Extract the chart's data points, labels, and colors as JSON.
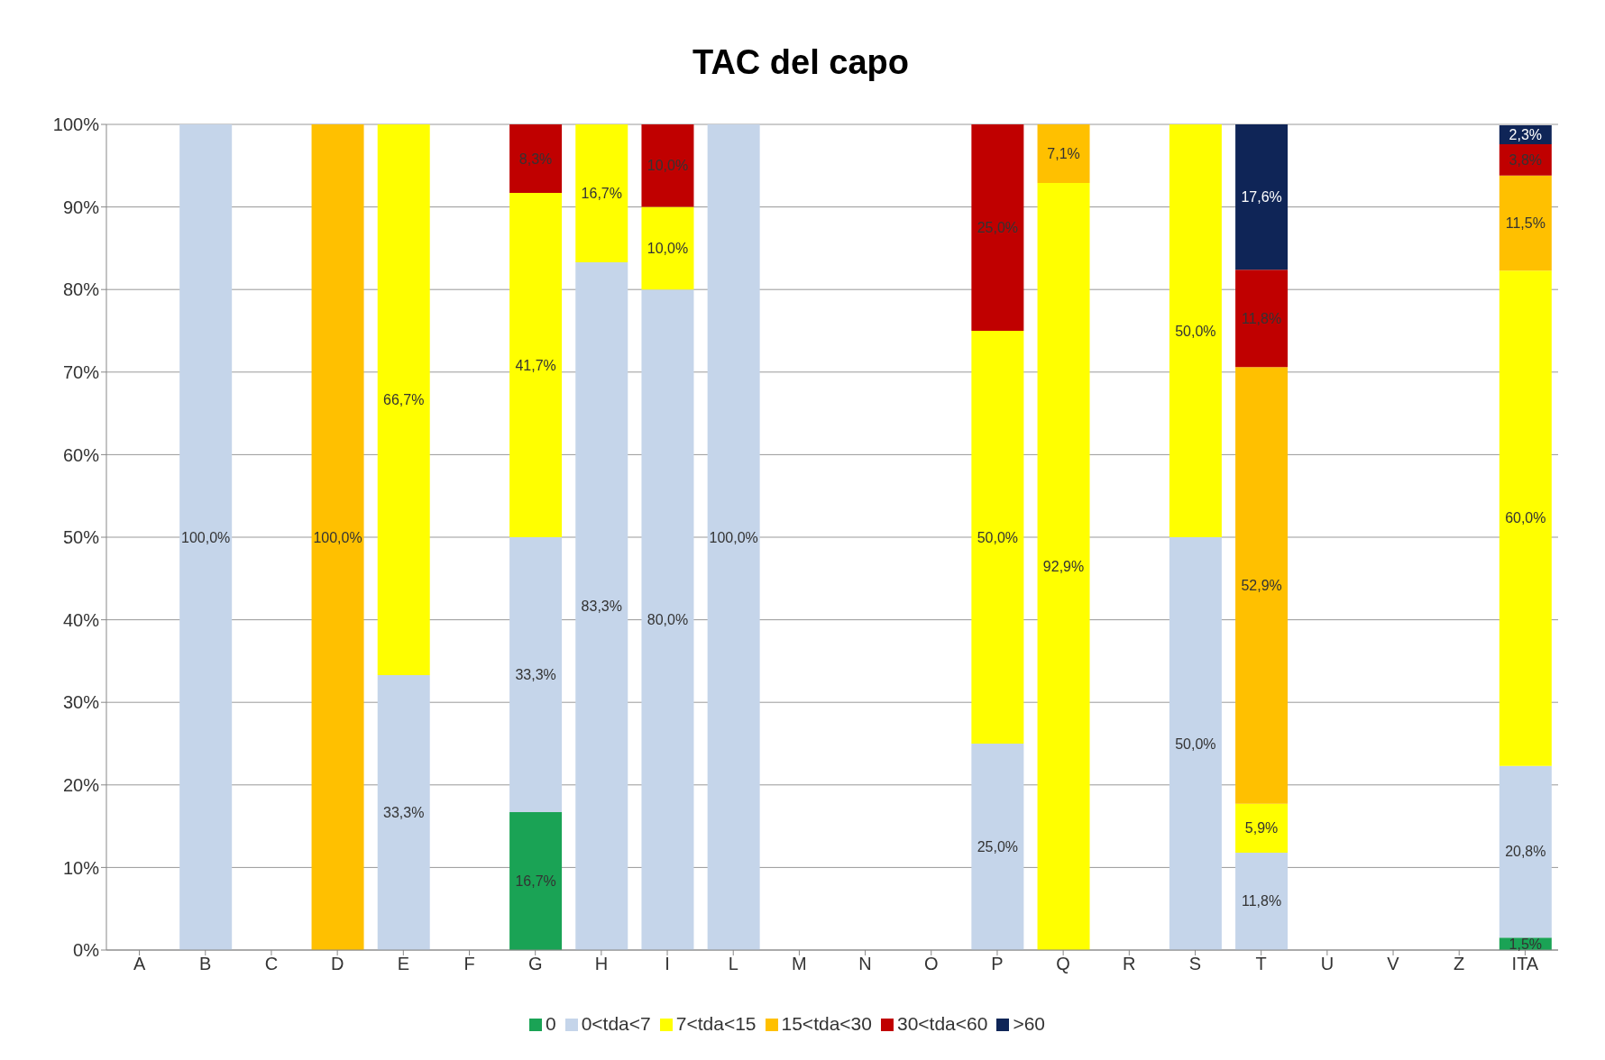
{
  "chart_data": {
    "type": "bar",
    "title": "TAC del capo",
    "stacked": true,
    "grid": "y",
    "legend": "bottom",
    "categories": [
      "A",
      "B",
      "C",
      "D",
      "E",
      "F",
      "G",
      "H",
      "I",
      "L",
      "M",
      "N",
      "O",
      "P",
      "Q",
      "R",
      "S",
      "T",
      "U",
      "V",
      "Z",
      "ITA"
    ],
    "ylim": [
      0,
      100
    ],
    "yticks": [
      {
        "value": 0,
        "label": "0%"
      },
      {
        "value": 10,
        "label": "10%"
      },
      {
        "value": 20,
        "label": "20%"
      },
      {
        "value": 30,
        "label": "30%"
      },
      {
        "value": 40,
        "label": "40%"
      },
      {
        "value": 50,
        "label": "50%"
      },
      {
        "value": 60,
        "label": "60%"
      },
      {
        "value": 70,
        "label": "70%"
      },
      {
        "value": 80,
        "label": "80%"
      },
      {
        "value": 90,
        "label": "90%"
      },
      {
        "value": 100,
        "label": "100%"
      }
    ],
    "series": [
      {
        "name": "0",
        "color": "#1aa355",
        "values": [
          null,
          null,
          null,
          null,
          null,
          null,
          16.7,
          null,
          null,
          null,
          null,
          null,
          null,
          null,
          null,
          null,
          null,
          null,
          null,
          null,
          null,
          1.5
        ],
        "value_labels": [
          null,
          null,
          null,
          null,
          null,
          null,
          "16,7%",
          null,
          null,
          null,
          null,
          null,
          null,
          null,
          null,
          null,
          null,
          null,
          null,
          null,
          null,
          "1,5%"
        ]
      },
      {
        "name": "0<tda<7",
        "color": "#c5d5ea",
        "values": [
          null,
          100,
          null,
          null,
          33.3,
          null,
          33.3,
          83.3,
          80,
          100,
          null,
          null,
          null,
          25,
          null,
          null,
          50,
          11.8,
          null,
          null,
          null,
          20.8
        ],
        "value_labels": [
          null,
          "100,0%",
          null,
          null,
          "33,3%",
          null,
          "33,3%",
          "83,3%",
          "80,0%",
          "100,0%",
          null,
          null,
          null,
          "25,0%",
          null,
          null,
          "50,0%",
          "11,8%",
          null,
          null,
          null,
          "20,8%"
        ]
      },
      {
        "name": "7<tda<15",
        "color": "#ffff00",
        "values": [
          null,
          null,
          null,
          null,
          66.7,
          null,
          41.7,
          16.7,
          10,
          null,
          null,
          null,
          null,
          50,
          92.9,
          null,
          50,
          5.9,
          null,
          null,
          null,
          60
        ],
        "value_labels": [
          null,
          null,
          null,
          null,
          "66,7%",
          null,
          "41,7%",
          "16,7%",
          "10,0%",
          null,
          null,
          null,
          null,
          "50,0%",
          "92,9%",
          null,
          "50,0%",
          "5,9%",
          null,
          null,
          null,
          "60,0%"
        ]
      },
      {
        "name": "15<tda<30",
        "color": "#ffc000",
        "values": [
          null,
          null,
          null,
          100,
          null,
          null,
          null,
          null,
          null,
          null,
          null,
          null,
          null,
          null,
          7.1,
          null,
          null,
          52.9,
          null,
          null,
          null,
          11.5
        ],
        "value_labels": [
          null,
          null,
          null,
          "100,0%",
          null,
          null,
          null,
          null,
          null,
          null,
          null,
          null,
          null,
          null,
          "7,1%",
          null,
          null,
          "52,9%",
          null,
          null,
          null,
          "11,5%"
        ]
      },
      {
        "name": "30<tda<60",
        "color": "#c00000",
        "values": [
          null,
          null,
          null,
          null,
          null,
          null,
          8.3,
          null,
          10,
          null,
          null,
          null,
          null,
          25,
          null,
          null,
          null,
          11.8,
          null,
          null,
          null,
          3.8
        ],
        "value_labels": [
          null,
          null,
          null,
          null,
          null,
          null,
          "8,3%",
          null,
          "10,0%",
          null,
          null,
          null,
          null,
          "25,0%",
          null,
          null,
          null,
          "11,8%",
          null,
          null,
          null,
          "3,8%"
        ]
      },
      {
        "name": ">60",
        "color": "#0f2557",
        "values": [
          null,
          null,
          null,
          null,
          null,
          null,
          null,
          null,
          null,
          null,
          null,
          null,
          null,
          null,
          null,
          null,
          null,
          17.6,
          null,
          null,
          null,
          2.3
        ],
        "value_labels": [
          null,
          null,
          null,
          null,
          null,
          null,
          null,
          null,
          null,
          null,
          null,
          null,
          null,
          null,
          null,
          null,
          null,
          "17,6%",
          null,
          null,
          null,
          "2,3%"
        ]
      }
    ]
  }
}
